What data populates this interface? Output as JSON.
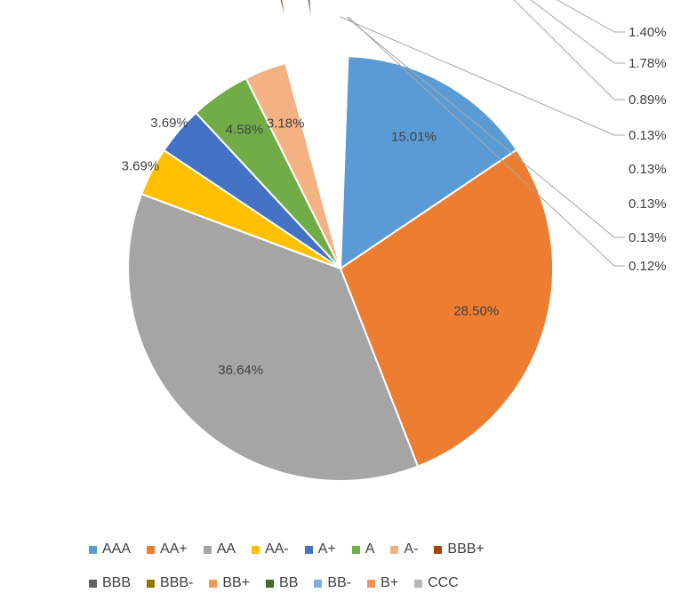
{
  "chart_data": {
    "type": "pie",
    "title": "",
    "legend_position": "bottom",
    "categories": [
      "AAA",
      "AA+",
      "AA",
      "AA-",
      "A+",
      "A",
      "A-",
      "BBB+",
      "BBB",
      "BBB-",
      "BB+",
      "BB",
      "BB-",
      "B+",
      "CCC"
    ],
    "values": [
      15.01,
      28.5,
      36.64,
      3.69,
      3.69,
      4.58,
      3.18,
      1.4,
      1.78,
      0.89,
      0.13,
      0.13,
      0.13,
      0.13,
      0.12
    ],
    "labels": [
      "15.01%",
      "28.50%",
      "36.64%",
      "3.69%",
      "3.69%",
      "4.58%",
      "3.18%",
      "1.40%",
      "1.78%",
      "0.89%",
      "0.13%",
      "0.13%",
      "0.13%",
      "0.13%",
      "0.12%"
    ],
    "colors": [
      "#5B9BD5",
      "#ED7D31",
      "#A5A5A5",
      "#FFC000",
      "#4472C4",
      "#70AD47",
      "#F4B183",
      "#9E480E",
      "#636363",
      "#997300",
      "#F19A5A",
      "#43682B",
      "#7CAFDD",
      "#F1975A",
      "#B7B7B7"
    ],
    "exploded": [
      "BBB+",
      "BBB",
      "BBB-",
      "BB+",
      "BB",
      "BB-",
      "B+",
      "CCC"
    ]
  }
}
